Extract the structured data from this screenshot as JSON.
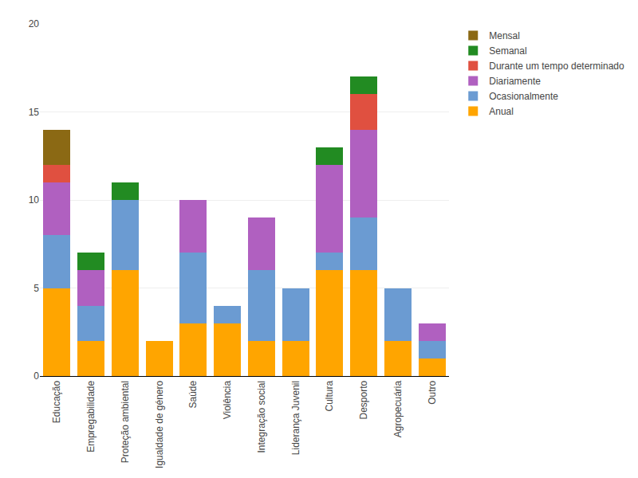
{
  "chart_data": {
    "type": "bar",
    "stacked": true,
    "categories": [
      "Educação",
      "Empregabilidade",
      "Proteção ambiental",
      "Igualdade de género",
      "Saúde",
      "Violência",
      "Integração social",
      "Liderança Juvenil",
      "Cultura",
      "Desporto",
      "Agropecuária",
      "Outro"
    ],
    "series": [
      {
        "name": "Anual",
        "color": "#FFA500",
        "values": [
          5,
          2,
          6,
          2,
          3,
          3,
          2,
          2,
          6,
          6,
          2,
          1
        ]
      },
      {
        "name": "Ocasionalmente",
        "color": "#6B9BD2",
        "values": [
          3,
          2,
          4,
          0,
          4,
          1,
          4,
          3,
          1,
          3,
          3,
          1
        ]
      },
      {
        "name": "Diariamente",
        "color": "#B060C0",
        "values": [
          3,
          2,
          0,
          0,
          3,
          0,
          3,
          0,
          5,
          5,
          0,
          1
        ]
      },
      {
        "name": "Durante um tempo determinado",
        "color": "#E05040",
        "values": [
          1,
          0,
          0,
          0,
          0,
          0,
          0,
          0,
          0,
          2,
          0,
          0
        ]
      },
      {
        "name": "Semanal",
        "color": "#228B22",
        "values": [
          0,
          1,
          1,
          0,
          0,
          0,
          0,
          0,
          1,
          1,
          0,
          0
        ]
      },
      {
        "name": "Mensal",
        "color": "#8B6914",
        "values": [
          2,
          0,
          0,
          0,
          0,
          0,
          0,
          0,
          0,
          0,
          0,
          0
        ]
      }
    ],
    "ylim": [
      0,
      20
    ],
    "yticks": [
      0,
      5,
      10,
      15,
      20
    ],
    "grid": true,
    "legend": "right"
  }
}
